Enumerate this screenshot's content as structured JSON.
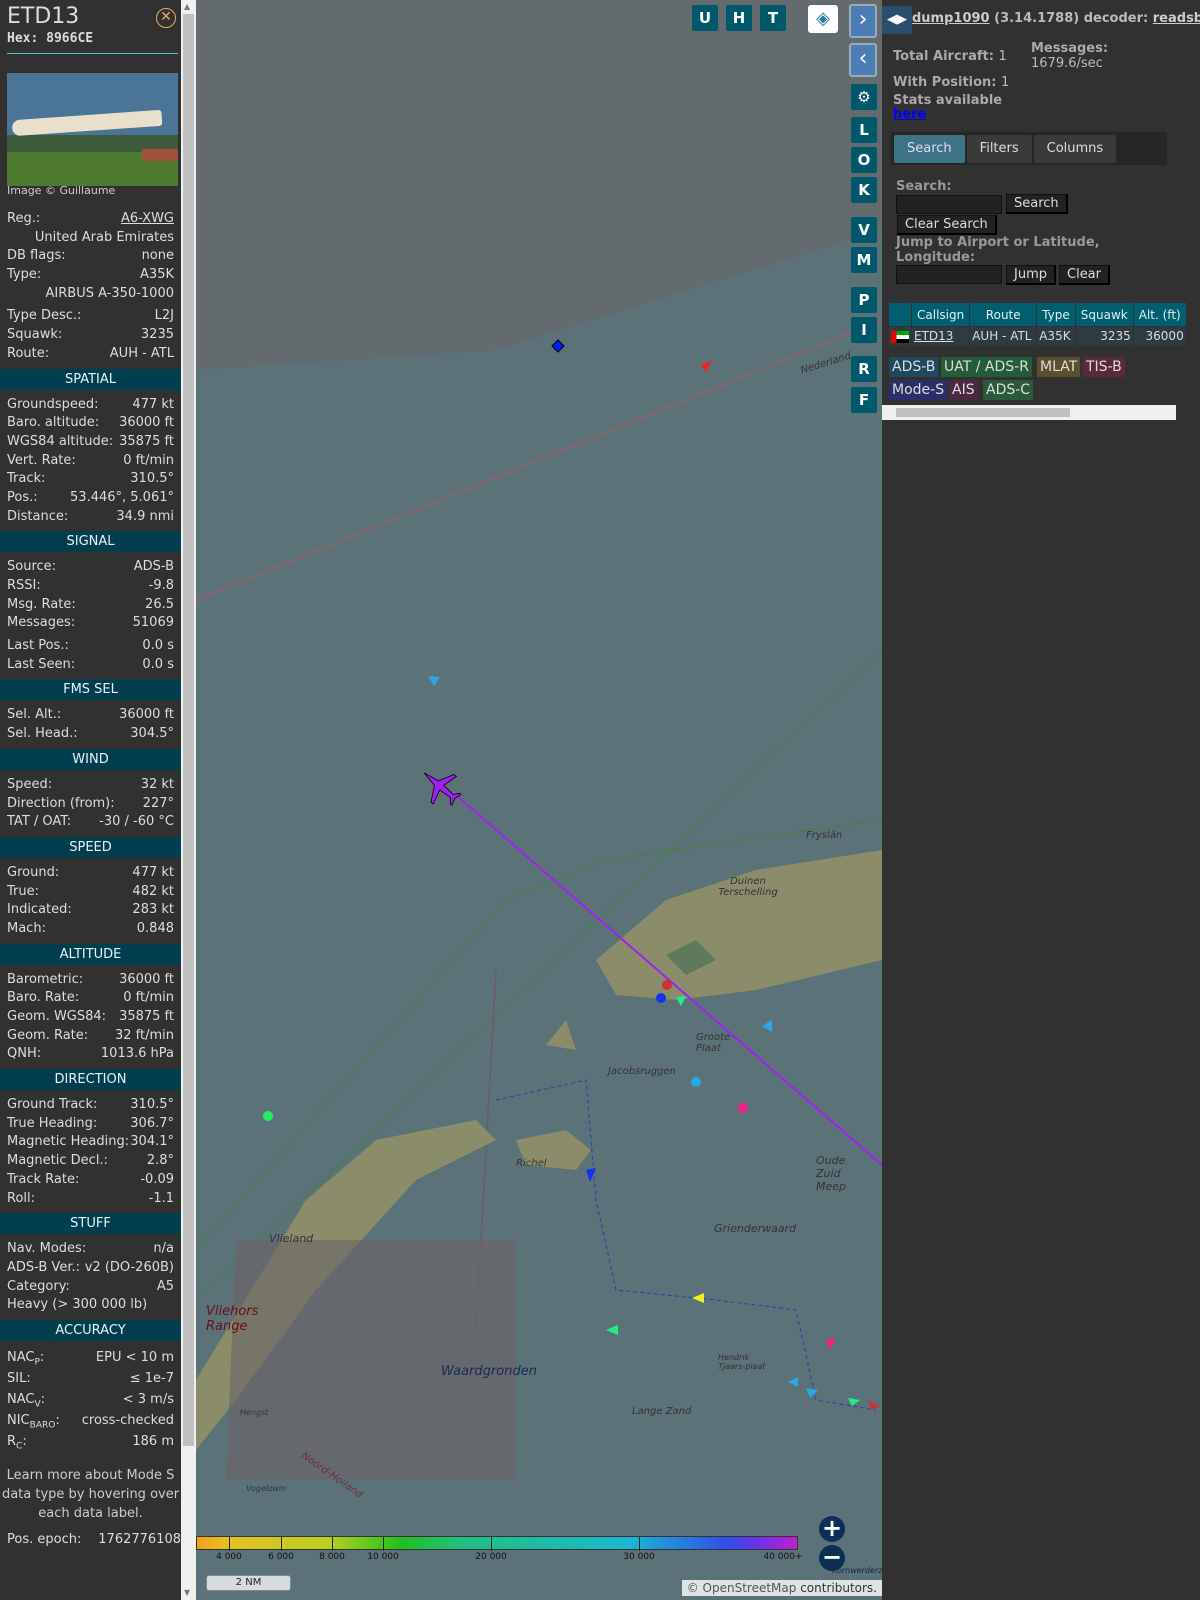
{
  "aircraft": {
    "callsign": "ETD13",
    "hex": "Hex: 8966CE",
    "image_credit": "Image © Guillaume",
    "info": [
      {
        "label": "Reg.:",
        "value": "A6-XWG",
        "link": true
      },
      {
        "label": "",
        "value": "United Arab Emirates"
      },
      {
        "label": "DB flags:",
        "value": "none"
      },
      {
        "label": "Type:",
        "value": "A35K"
      },
      {
        "label": "",
        "value": "AIRBUS A-350-1000"
      },
      {
        "label": "Type Desc.:",
        "value": "L2J"
      },
      {
        "label": "Squawk:",
        "value": "3235"
      },
      {
        "label": "Route:",
        "value": "AUH - ATL"
      }
    ],
    "sections": [
      {
        "title": "SPATIAL",
        "rows": [
          [
            "Groundspeed:",
            "477 kt"
          ],
          [
            "Baro. altitude:",
            "36000 ft"
          ],
          [
            "WGS84 altitude:",
            "35875 ft"
          ],
          [
            "Vert. Rate:",
            "0 ft/min"
          ],
          [
            "Track:",
            "310.5°"
          ],
          [
            "Pos.:",
            "53.446°, 5.061°"
          ],
          [
            "Distance:",
            "34.9 nmi"
          ]
        ]
      },
      {
        "title": "SIGNAL",
        "rows": [
          [
            "Source:",
            "ADS-B"
          ],
          [
            "RSSI:",
            "-9.8"
          ],
          [
            "Msg. Rate:",
            "26.5"
          ],
          [
            "Messages:",
            "51069"
          ],
          [
            "Last Pos.:",
            "0.0 s"
          ],
          [
            "Last Seen:",
            "0.0 s"
          ]
        ]
      },
      {
        "title": "FMS SEL",
        "rows": [
          [
            "Sel. Alt.:",
            "36000 ft"
          ],
          [
            "Sel. Head.:",
            "304.5°"
          ]
        ]
      },
      {
        "title": "WIND",
        "rows": [
          [
            "Speed:",
            "32 kt"
          ],
          [
            "Direction (from):",
            "227°"
          ],
          [
            "TAT / OAT:",
            "-30 / -60 °C"
          ]
        ]
      },
      {
        "title": "SPEED",
        "rows": [
          [
            "Ground:",
            "477 kt"
          ],
          [
            "True:",
            "482 kt"
          ],
          [
            "Indicated:",
            "283 kt"
          ],
          [
            "Mach:",
            "0.848"
          ]
        ]
      },
      {
        "title": "ALTITUDE",
        "rows": [
          [
            "Barometric:",
            "36000 ft"
          ],
          [
            "Baro. Rate:",
            "0 ft/min"
          ],
          [
            "Geom. WGS84:",
            "35875 ft"
          ],
          [
            "Geom. Rate:",
            "32 ft/min"
          ],
          [
            "QNH:",
            "1013.6 hPa"
          ]
        ]
      },
      {
        "title": "DIRECTION",
        "rows": [
          [
            "Ground Track:",
            "310.5°"
          ],
          [
            "True Heading:",
            "306.7°"
          ],
          [
            "Magnetic Heading:",
            "304.1°"
          ],
          [
            "Magnetic Decl.:",
            "2.8°"
          ],
          [
            "Track Rate:",
            "-0.09"
          ],
          [
            "Roll:",
            "-1.1"
          ]
        ]
      },
      {
        "title": "STUFF",
        "rows": [
          [
            "Nav. Modes:",
            "n/a"
          ],
          [
            "ADS-B Ver.:",
            "v2 (DO-260B)"
          ],
          [
            "Category:",
            "A5"
          ],
          [
            "Heavy (> 300 000 lb)",
            ""
          ]
        ]
      }
    ],
    "accuracy": {
      "title": "ACCURACY",
      "rows": [
        {
          "base": "NAC",
          "sub": "P",
          "value": "EPU < 10 m"
        },
        {
          "base": "SIL",
          "sub": "",
          "value": "≤ 1e-7"
        },
        {
          "base": "NAC",
          "sub": "V",
          "value": "< 3 m/s"
        },
        {
          "base": "NIC",
          "sub": "BARO",
          "value": "cross-checked"
        },
        {
          "base": "R",
          "sub": "C",
          "value": "186 m"
        }
      ]
    },
    "note": "Learn more about Mode S data type by hovering over each data label.",
    "pos_epoch_label": "Pos. epoch:",
    "pos_epoch": "1762776108"
  },
  "map": {
    "top_buttons": [
      "U",
      "H",
      "T"
    ],
    "side_buttons": [
      "L",
      "O",
      "K",
      "V",
      "M",
      "P",
      "I",
      "R",
      "F"
    ],
    "labels": [
      "Nederland",
      "Duinen Terschelling",
      "Fryslân",
      "Groote Plaat",
      "Jacobsruggen",
      "Richel",
      "Oude Zuid Meep",
      "Grienderwaard",
      "Vlieland",
      "Vliehors Range",
      "Waardgronden",
      "Hendrik Tjaars-plaat",
      "Lange Zand",
      "Hengst",
      "Vogelzwin",
      "Noord-Holland",
      "Kornwerderzand"
    ],
    "altitude_legend": [
      "4 000",
      "6 000",
      "8 000",
      "10 000",
      "20 000",
      "30 000",
      "40 000+"
    ],
    "scale": "2 NM",
    "attribution_prefix": "© OpenStreetMap",
    "attribution_suffix": "contributors.",
    "track_color": "#a020f0"
  },
  "panel": {
    "title_link": "dump1090",
    "title_version": "(3.14.1788) decoder:",
    "decoder_link": "readsb",
    "total_aircraft_label": "Total Aircraft:",
    "total_aircraft": "1",
    "with_position_label": "With Position:",
    "with_position": "1",
    "messages_label": "Messages:",
    "messages": "1679.6/sec",
    "stats_label": "Stats available",
    "stats_link": "here",
    "tabs": [
      "Search",
      "Filters",
      "Columns"
    ],
    "search_label": "Search:",
    "search_value": "",
    "search_button": "Search",
    "clear_search_button": "Clear Search",
    "jump_label": "Jump to Airport or Latitude, Longitude:",
    "jump_value": "",
    "jump_button": "Jump",
    "clear_button": "Clear",
    "table": {
      "headers": [
        "",
        "Callsign",
        "Route",
        "Type",
        "Squawk",
        "Alt. (ft)"
      ],
      "rows": [
        [
          "ETD13",
          "AUH - ATL",
          "A35K",
          "3235",
          "36000"
        ]
      ]
    },
    "sources": [
      {
        "label": "ADS-B",
        "color": "#1f4a5e"
      },
      {
        "label": "UAT / ADS-R",
        "color": "#245c3a"
      },
      {
        "label": "MLAT",
        "color": "#5a5030"
      },
      {
        "label": "TIS-B",
        "color": "#5a2a3a"
      },
      {
        "label": "Mode-S",
        "color": "#2a2f6a"
      },
      {
        "label": "AIS",
        "color": "#4a2a40"
      },
      {
        "label": "ADS-C",
        "color": "#2a5a3a"
      }
    ]
  }
}
